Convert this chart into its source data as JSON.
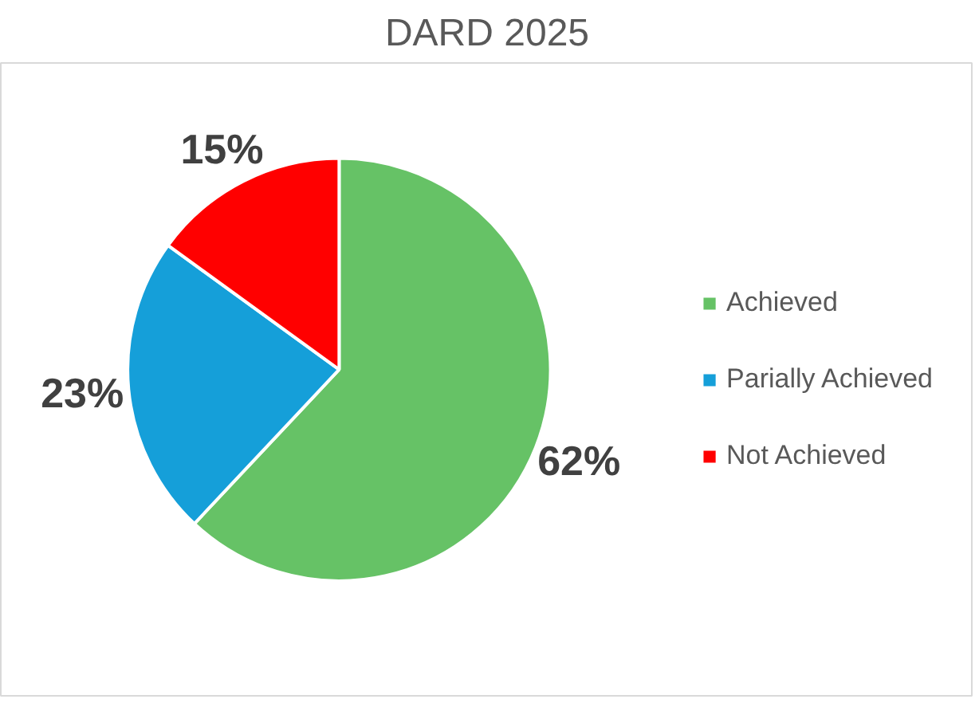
{
  "chart_data": {
    "type": "pie",
    "title": "DARD 2025",
    "categories": [
      "Achieved",
      "Parially Achieved",
      "Not Achieved"
    ],
    "values": [
      62,
      23,
      15
    ],
    "colors": [
      "#66c266",
      "#159fd9",
      "#ff0000"
    ],
    "value_labels": [
      "62%",
      "23%",
      "15%"
    ],
    "legend": "right"
  }
}
